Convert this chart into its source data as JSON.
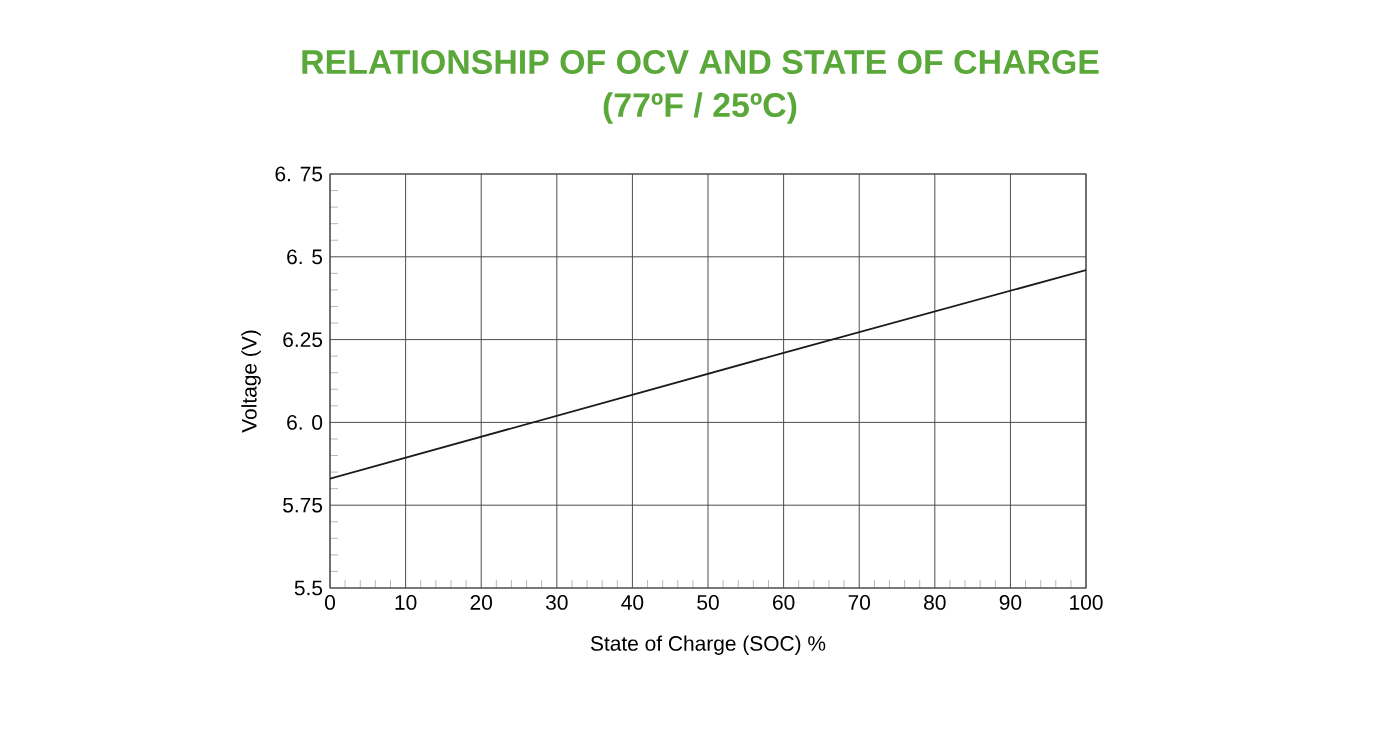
{
  "chart_data": {
    "type": "line",
    "title": "RELATIONSHIP OF OCV AND STATE OF CHARGE",
    "subtitle": "(77ºF / 25ºC)",
    "xlabel": "State of Charge (SOC) %",
    "ylabel": "Voltage (V)",
    "x": [
      0,
      30,
      60,
      100
    ],
    "series": [
      {
        "color": "#1a1a1a",
        "values": [
          5.83,
          6.02,
          6.21,
          6.46
        ]
      }
    ],
    "xlim": [
      0,
      100
    ],
    "xticks": [
      0,
      10,
      20,
      30,
      40,
      50,
      60,
      70,
      80,
      90,
      100
    ],
    "ylim": [
      5.5,
      6.75
    ],
    "yticks": [
      5.5,
      5.75,
      {
        "value": 6.0,
        "label": "6. 0"
      },
      6.25,
      {
        "value": 6.5,
        "label": "6. 5"
      },
      {
        "value": 6.75,
        "label": "6. 75"
      }
    ],
    "grid": true,
    "legend": false,
    "marker": "none",
    "line_style": "solid"
  }
}
